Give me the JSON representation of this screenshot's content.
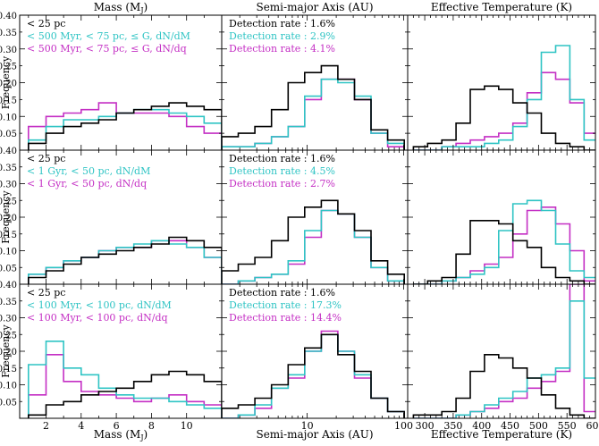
{
  "figure": {
    "ylabel": "Frequency",
    "col_titles": [
      "Mass (M$_J$)",
      "Semi-major Axis (AU)",
      "Effective Temperature (K)"
    ],
    "xlabels": [
      "Mass (M$_J$)",
      "Semi-major Axis (AU)",
      "Effective Temperature (K)"
    ],
    "series_colors": [
      "#000000",
      "#2fc4c4",
      "#c42fc4"
    ]
  },
  "chart_data": [
    {
      "type": "histogram",
      "row": 0,
      "col": 0,
      "xlim": [
        0.5,
        12
      ],
      "ylim": [
        0.0,
        0.4
      ],
      "edges": [
        1,
        2,
        3,
        4,
        5,
        6,
        7,
        8,
        9,
        10,
        11,
        12
      ],
      "legend": [
        "< 25 pc",
        "< 500 Myr,  < 75 pc,  ≤ G,  dN/dM",
        "< 500 Myr,  < 75 pc,  ≤ G,  dN/dq"
      ],
      "series": [
        {
          "values": [
            0.02,
            0.05,
            0.07,
            0.08,
            0.09,
            0.11,
            0.12,
            0.13,
            0.14,
            0.13,
            0.12
          ]
        },
        {
          "values": [
            0.03,
            0.07,
            0.09,
            0.09,
            0.1,
            0.11,
            0.12,
            0.12,
            0.11,
            0.1,
            0.08
          ]
        },
        {
          "values": [
            0.07,
            0.1,
            0.11,
            0.12,
            0.14,
            0.11,
            0.11,
            0.11,
            0.1,
            0.07,
            0.05
          ]
        }
      ]
    },
    {
      "type": "histogram",
      "row": 0,
      "col": 1,
      "log_x": true,
      "xlim": [
        1.3,
        110
      ],
      "ylim": [
        0.0,
        0.4
      ],
      "edges": [
        1.3,
        1.93,
        2.87,
        4.27,
        6.34,
        9.42,
        14.0,
        20.8,
        30.9,
        45.9,
        68.2,
        101.4
      ],
      "legend": [
        "Detection rate : 1.6%",
        "Detection rate : 2.9%",
        "Detection rate : 4.1%"
      ],
      "series": [
        {
          "values": [
            0.04,
            0.05,
            0.07,
            0.12,
            0.2,
            0.23,
            0.25,
            0.21,
            0.15,
            0.06,
            0.03
          ]
        },
        {
          "values": [
            0.01,
            0.01,
            0.02,
            0.04,
            0.07,
            0.16,
            0.21,
            0.2,
            0.16,
            0.05,
            0.02
          ]
        },
        {
          "values": [
            0.01,
            0.01,
            0.02,
            0.04,
            0.07,
            0.15,
            0.21,
            0.21,
            0.15,
            0.05,
            0.01
          ]
        }
      ]
    },
    {
      "type": "histogram",
      "row": 0,
      "col": 2,
      "xlim": [
        270,
        600
      ],
      "ylim": [
        0.0,
        0.4
      ],
      "edges": [
        280,
        305,
        330,
        355,
        380,
        405,
        430,
        455,
        480,
        505,
        530,
        555,
        580,
        605
      ],
      "legend": [],
      "series": [
        {
          "values": [
            0.01,
            0.02,
            0.03,
            0.08,
            0.18,
            0.19,
            0.18,
            0.14,
            0.11,
            0.05,
            0.02,
            0.01,
            0.0
          ]
        },
        {
          "values": [
            0.0,
            0.0,
            0.01,
            0.01,
            0.01,
            0.02,
            0.03,
            0.07,
            0.15,
            0.29,
            0.31,
            0.15,
            0.03
          ]
        },
        {
          "values": [
            0.0,
            0.0,
            0.01,
            0.02,
            0.03,
            0.04,
            0.05,
            0.08,
            0.17,
            0.23,
            0.21,
            0.14,
            0.05
          ]
        }
      ]
    },
    {
      "type": "histogram",
      "row": 1,
      "col": 0,
      "xlim": [
        0.5,
        12
      ],
      "ylim": [
        0.0,
        0.4
      ],
      "edges": [
        1,
        2,
        3,
        4,
        5,
        6,
        7,
        8,
        9,
        10,
        11,
        12
      ],
      "legend": [
        "< 25 pc",
        "< 1 Gyr,  < 50 pc,  dN/dM",
        "< 1 Gyr,  < 50 pc,  dN/dq"
      ],
      "series": [
        {
          "values": [
            0.02,
            0.04,
            0.06,
            0.08,
            0.09,
            0.1,
            0.11,
            0.12,
            0.14,
            0.13,
            0.11
          ]
        },
        {
          "values": [
            0.03,
            0.05,
            0.07,
            0.08,
            0.1,
            0.11,
            0.12,
            0.13,
            0.12,
            0.11,
            0.08
          ]
        },
        {
          "values": [
            0.03,
            0.05,
            0.07,
            0.08,
            0.1,
            0.11,
            0.11,
            0.13,
            0.13,
            0.11,
            0.08
          ]
        }
      ]
    },
    {
      "type": "histogram",
      "row": 1,
      "col": 1,
      "log_x": true,
      "xlim": [
        1.3,
        110
      ],
      "ylim": [
        0.0,
        0.4
      ],
      "edges": [
        1.3,
        1.93,
        2.87,
        4.27,
        6.34,
        9.42,
        14.0,
        20.8,
        30.9,
        45.9,
        68.2,
        101.4
      ],
      "legend": [
        "Detection rate : 1.6%",
        "Detection rate : 4.5%",
        "Detection rate : 2.7%"
      ],
      "series": [
        {
          "values": [
            0.04,
            0.06,
            0.08,
            0.13,
            0.2,
            0.23,
            0.25,
            0.21,
            0.16,
            0.07,
            0.03
          ]
        },
        {
          "values": [
            0.0,
            0.01,
            0.02,
            0.03,
            0.07,
            0.16,
            0.22,
            0.21,
            0.14,
            0.05,
            0.01
          ]
        },
        {
          "values": [
            0.0,
            0.01,
            0.02,
            0.03,
            0.06,
            0.14,
            0.22,
            0.21,
            0.14,
            0.05,
            0.01
          ]
        }
      ]
    },
    {
      "type": "histogram",
      "row": 1,
      "col": 2,
      "xlim": [
        270,
        600
      ],
      "ylim": [
        0.0,
        0.4
      ],
      "edges": [
        280,
        305,
        330,
        355,
        380,
        405,
        430,
        455,
        480,
        505,
        530,
        555,
        580,
        605
      ],
      "legend": [],
      "series": [
        {
          "values": [
            0.0,
            0.01,
            0.02,
            0.09,
            0.19,
            0.19,
            0.18,
            0.13,
            0.11,
            0.05,
            0.02,
            0.01,
            0.0
          ]
        },
        {
          "values": [
            0.0,
            0.0,
            0.01,
            0.02,
            0.03,
            0.05,
            0.16,
            0.24,
            0.25,
            0.22,
            0.12,
            0.04,
            0.02
          ]
        },
        {
          "values": [
            0.0,
            0.0,
            0.01,
            0.02,
            0.04,
            0.06,
            0.08,
            0.15,
            0.22,
            0.23,
            0.18,
            0.1,
            0.01
          ]
        }
      ]
    },
    {
      "type": "histogram",
      "row": 2,
      "col": 0,
      "xlim": [
        0.5,
        12
      ],
      "ylim": [
        0.0,
        0.4
      ],
      "edges": [
        1,
        2,
        3,
        4,
        5,
        6,
        7,
        8,
        9,
        10,
        11,
        12
      ],
      "legend": [
        "< 25 pc",
        "< 100 Myr,  < 100 pc,  dN/dM",
        "< 100 Myr,  < 100 pc,  dN/dq"
      ],
      "series": [
        {
          "values": [
            0.01,
            0.04,
            0.05,
            0.07,
            0.08,
            0.09,
            0.11,
            0.13,
            0.14,
            0.13,
            0.11
          ]
        },
        {
          "values": [
            0.16,
            0.23,
            0.15,
            0.13,
            0.09,
            0.07,
            0.06,
            0.06,
            0.05,
            0.04,
            0.03
          ]
        },
        {
          "values": [
            0.07,
            0.19,
            0.11,
            0.08,
            0.07,
            0.06,
            0.05,
            0.06,
            0.07,
            0.05,
            0.04
          ]
        }
      ]
    },
    {
      "type": "histogram",
      "row": 2,
      "col": 1,
      "log_x": true,
      "xlim": [
        1.3,
        110
      ],
      "ylim": [
        0.0,
        0.4
      ],
      "edges": [
        1.3,
        1.93,
        2.87,
        4.27,
        6.34,
        9.42,
        14.0,
        20.8,
        30.9,
        45.9,
        68.2,
        101.4
      ],
      "legend": [
        "Detection rate : 1.6%",
        "Detection rate : 17.3%",
        "Detection rate : 14.4%"
      ],
      "series": [
        {
          "values": [
            0.03,
            0.04,
            0.06,
            0.1,
            0.16,
            0.21,
            0.25,
            0.19,
            0.14,
            0.06,
            0.02
          ]
        },
        {
          "values": [
            0.0,
            0.01,
            0.04,
            0.09,
            0.13,
            0.2,
            0.25,
            0.2,
            0.13,
            0.06,
            0.02
          ]
        },
        {
          "values": [
            0.0,
            0.01,
            0.03,
            0.09,
            0.12,
            0.2,
            0.26,
            0.2,
            0.12,
            0.06,
            0.02
          ]
        }
      ]
    },
    {
      "type": "histogram",
      "row": 2,
      "col": 2,
      "xlim": [
        270,
        600
      ],
      "ylim": [
        0.0,
        0.4
      ],
      "edges": [
        280,
        305,
        330,
        355,
        380,
        405,
        430,
        455,
        480,
        505,
        530,
        555,
        580,
        605
      ],
      "legend": [],
      "series": [
        {
          "values": [
            0.01,
            0.01,
            0.02,
            0.06,
            0.14,
            0.19,
            0.18,
            0.15,
            0.12,
            0.07,
            0.03,
            0.01,
            0.0
          ]
        },
        {
          "values": [
            0.0,
            0.0,
            0.0,
            0.01,
            0.02,
            0.04,
            0.06,
            0.08,
            0.12,
            0.13,
            0.15,
            0.35,
            0.12
          ]
        },
        {
          "values": [
            0.0,
            0.0,
            0.0,
            0.01,
            0.02,
            0.03,
            0.05,
            0.06,
            0.09,
            0.11,
            0.14,
            0.4,
            0.02
          ]
        }
      ]
    }
  ]
}
